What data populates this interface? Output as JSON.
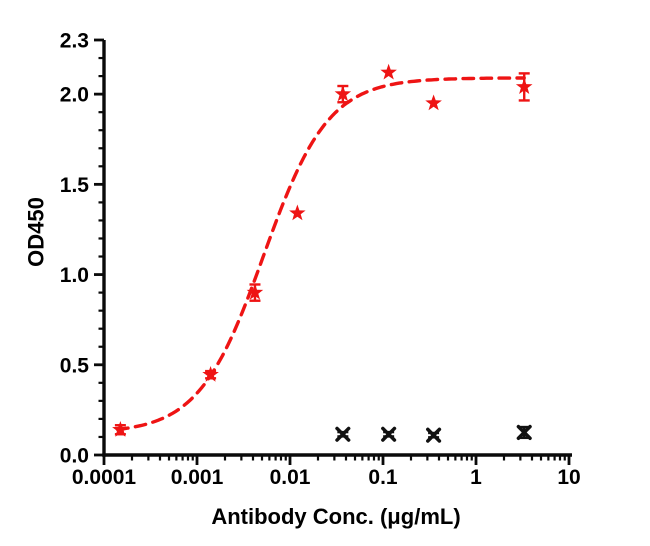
{
  "figure": {
    "background": "#ffffff",
    "axis_color": "#0a0a0a",
    "accent_red": "#ee1414",
    "marker_black": "#111111"
  },
  "chart_data": {
    "type": "scatter",
    "title": "",
    "xlabel": "Antibody Conc. (μg/mL)",
    "ylabel": "OD450",
    "x_scale": "log",
    "xlim": [
      0.0001,
      10
    ],
    "ylim": [
      0,
      2.3
    ],
    "grid": false,
    "legend": "none",
    "x_ticks": [
      {
        "value": 0.0001,
        "label": "0.0001"
      },
      {
        "value": 0.001,
        "label": "0.001"
      },
      {
        "value": 0.01,
        "label": "0.01"
      },
      {
        "value": 0.1,
        "label": "0.1"
      },
      {
        "value": 1,
        "label": "1"
      },
      {
        "value": 10,
        "label": "10"
      }
    ],
    "y_ticks": [
      {
        "value": 0.0,
        "label": "0.0"
      },
      {
        "value": 0.5,
        "label": "0.5"
      },
      {
        "value": 1.0,
        "label": "1.0"
      },
      {
        "value": 1.5,
        "label": "1.5"
      },
      {
        "value": 2.0,
        "label": "2.0"
      },
      {
        "value": 2.3,
        "label": "2.3"
      }
    ],
    "y_minor_step": 0.1,
    "series": [
      {
        "name": "red-star-series",
        "marker": "star",
        "color": "#ee1414",
        "points": [
          {
            "x": 0.00015,
            "y": 0.14,
            "err": 0.025
          },
          {
            "x": 0.0014,
            "y": 0.445,
            "err": 0.02
          },
          {
            "x": 0.0042,
            "y": 0.9,
            "err": 0.045
          },
          {
            "x": 0.012,
            "y": 1.34,
            "err": 0
          },
          {
            "x": 0.037,
            "y": 2.0,
            "err": 0.045
          },
          {
            "x": 0.115,
            "y": 2.12,
            "err": 0
          },
          {
            "x": 0.35,
            "y": 1.95,
            "err": 0
          },
          {
            "x": 3.3,
            "y": 2.04,
            "err": 0.075
          }
        ],
        "fit": {
          "type": "4PL",
          "bottom": 0.12,
          "top": 2.09,
          "ec50": 0.0052,
          "hill": 1.25,
          "range": [
            0.00014,
            3.3
          ],
          "style": "dashed"
        }
      },
      {
        "name": "black-x-series",
        "marker": "x",
        "color": "#111111",
        "points": [
          {
            "x": 0.037,
            "y": 0.115,
            "err": 0.012
          },
          {
            "x": 0.115,
            "y": 0.115,
            "err": 0.012
          },
          {
            "x": 0.35,
            "y": 0.11,
            "err": 0.012
          },
          {
            "x": 3.3,
            "y": 0.125,
            "err": 0.03
          }
        ],
        "fit": null
      }
    ]
  }
}
